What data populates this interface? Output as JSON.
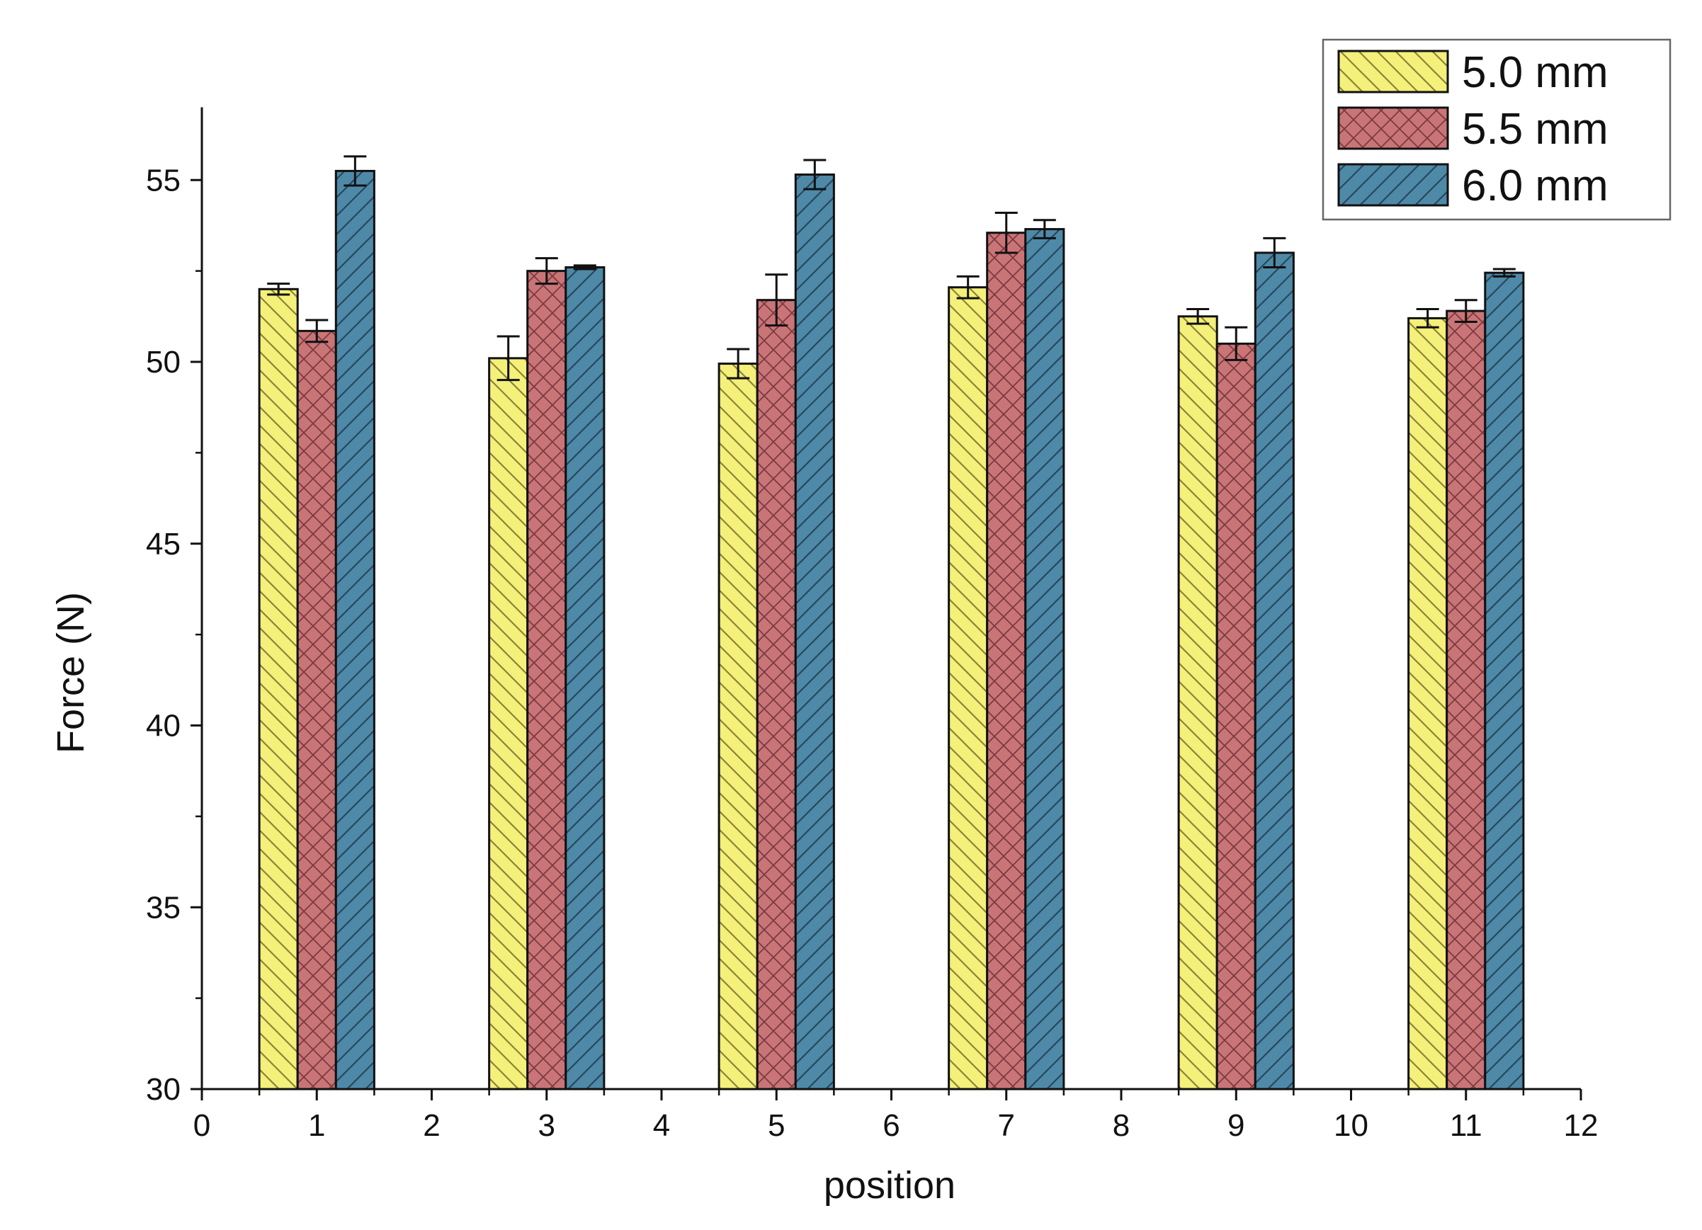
{
  "chart_data": {
    "type": "bar",
    "xlabel": "position",
    "ylabel": "Force (N)",
    "xlim": [
      0,
      12
    ],
    "ylim": [
      30,
      57
    ],
    "x_ticks": [
      0,
      1,
      2,
      3,
      4,
      5,
      6,
      7,
      8,
      9,
      10,
      11,
      12
    ],
    "y_ticks": [
      30,
      35,
      40,
      45,
      50,
      55
    ],
    "grid": false,
    "legend_position": "top-right",
    "x": [
      1,
      3,
      5,
      7,
      9,
      11
    ],
    "series": [
      {
        "name": "5.0 mm",
        "color": "#f4f07a",
        "pattern": "hatch-right",
        "values": [
          52.0,
          50.1,
          49.95,
          52.05,
          51.25,
          51.2
        ],
        "errors": [
          0.15,
          0.6,
          0.4,
          0.3,
          0.2,
          0.25
        ]
      },
      {
        "name": "5.5 mm",
        "color": "#c97578",
        "pattern": "crosshatch",
        "values": [
          50.85,
          52.5,
          51.7,
          53.55,
          50.5,
          51.4
        ],
        "errors": [
          0.3,
          0.35,
          0.7,
          0.55,
          0.45,
          0.3
        ]
      },
      {
        "name": "6.0 mm",
        "color": "#4f89a8",
        "pattern": "hatch-left",
        "values": [
          55.25,
          52.6,
          55.15,
          53.65,
          53.0,
          52.45
        ],
        "errors": [
          0.4,
          0.05,
          0.4,
          0.25,
          0.4,
          0.1
        ]
      }
    ]
  }
}
